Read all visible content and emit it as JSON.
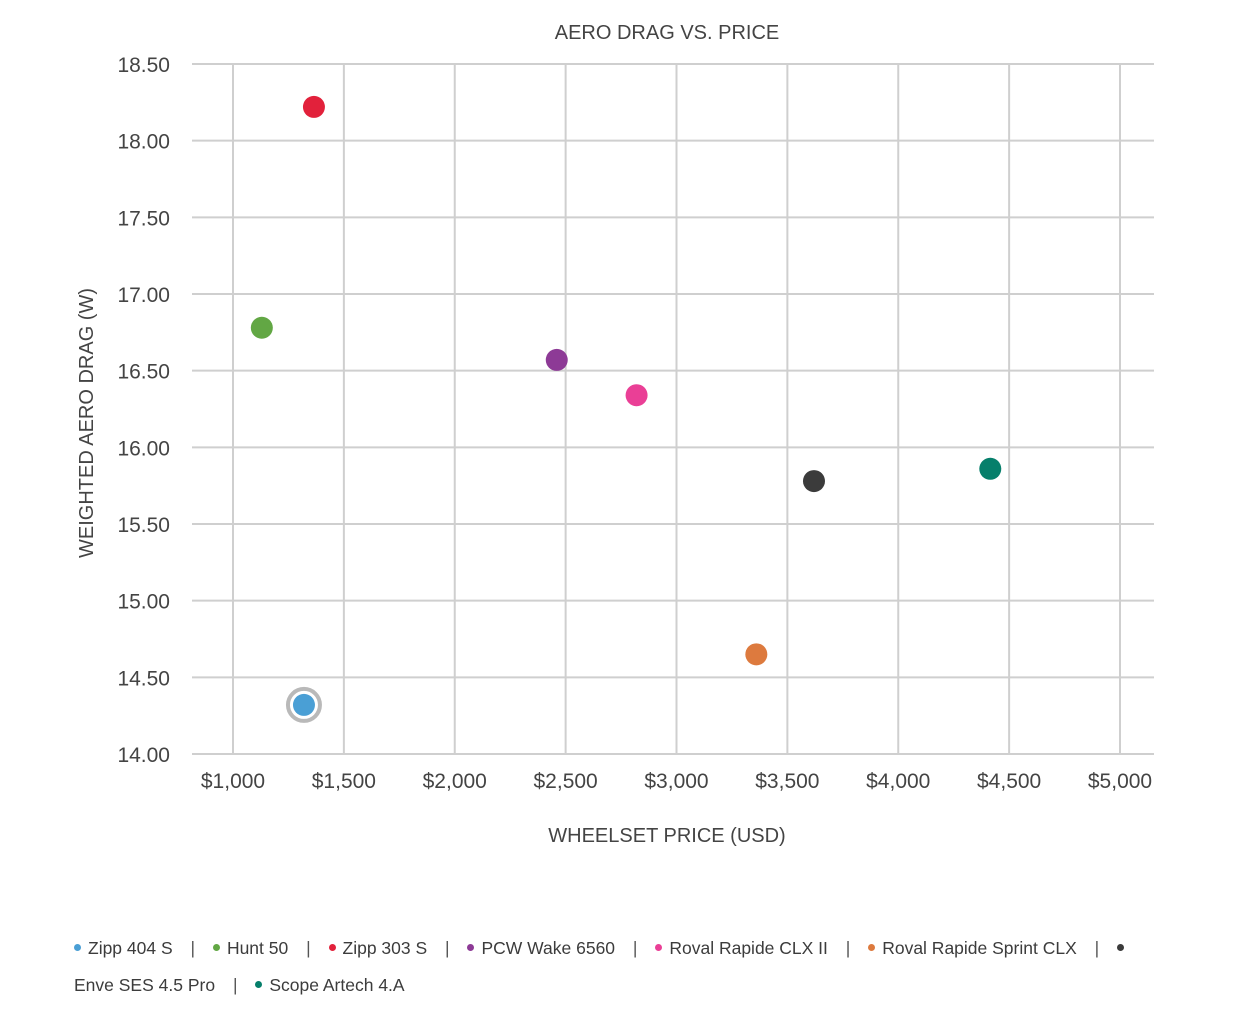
{
  "chart_data": {
    "type": "scatter",
    "title": "AERO DRAG VS. PRICE",
    "xlabel": "WHEELSET PRICE (USD)",
    "ylabel": "WEIGHTED AERO DRAG (W)",
    "xlim": [
      1000,
      5000
    ],
    "ylim": [
      14.0,
      18.5
    ],
    "x_tick_labels": [
      "$1,000",
      "$1,500",
      "$2,000",
      "$2,500",
      "$3,000",
      "$3,500",
      "$4,000",
      "$4,500",
      "$5,000"
    ],
    "y_tick_labels": [
      "14.00",
      "14.50",
      "15.00",
      "15.50",
      "16.00",
      "16.50",
      "17.00",
      "17.50",
      "18.00",
      "18.50"
    ],
    "grid": true,
    "legend_position": "bottom",
    "series": [
      {
        "name": "Zipp 404 S",
        "color": "#4a9fd5",
        "x": 1320,
        "y": 14.32,
        "highlighted": true
      },
      {
        "name": "Hunt 50",
        "color": "#62a744",
        "x": 1130,
        "y": 16.78
      },
      {
        "name": "Zipp 303 S",
        "color": "#e2213b",
        "x": 1365,
        "y": 18.22
      },
      {
        "name": "PCW Wake 6560",
        "color": "#8d3a96",
        "x": 2460,
        "y": 16.57
      },
      {
        "name": "Roval Rapide CLX II",
        "color": "#ea3f96",
        "x": 2820,
        "y": 16.34
      },
      {
        "name": "Roval Rapide Sprint CLX",
        "color": "#dd7a3e",
        "x": 3360,
        "y": 14.65
      },
      {
        "name": "Enve SES 4.5 Pro",
        "color": "#3b3b3b",
        "x": 3620,
        "y": 15.78
      },
      {
        "name": "Scope Artech 4.A",
        "color": "#067f6b",
        "x": 4415,
        "y": 15.86
      }
    ]
  }
}
